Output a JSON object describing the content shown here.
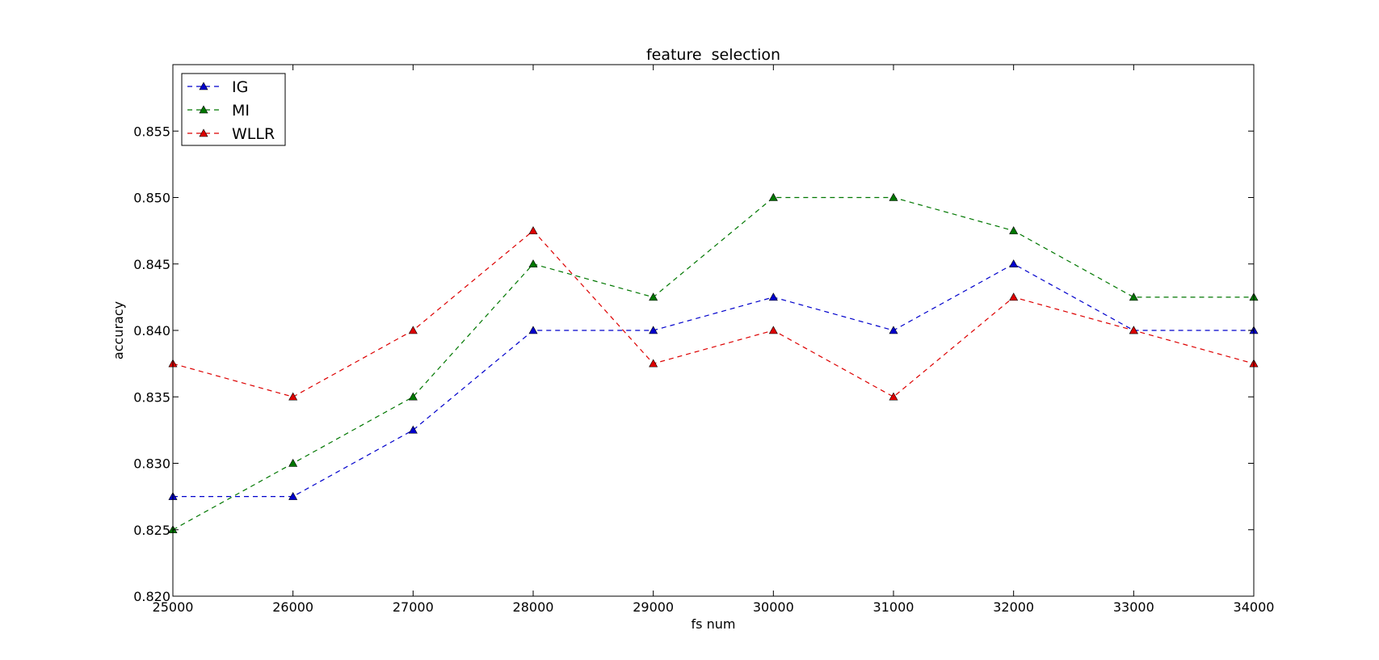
{
  "chart_data": {
    "type": "line",
    "title": "feature  selection",
    "xlabel": "fs num",
    "ylabel": "accuracy",
    "xlim": [
      25000,
      34000
    ],
    "ylim": [
      0.82,
      0.86
    ],
    "x": [
      25000,
      26000,
      27000,
      28000,
      29000,
      30000,
      31000,
      32000,
      33000,
      34000
    ],
    "xticks": [
      "25000",
      "26000",
      "27000",
      "28000",
      "29000",
      "30000",
      "31000",
      "32000",
      "33000",
      "34000"
    ],
    "yticks": [
      {
        "value": 0.82,
        "label": "0.820"
      },
      {
        "value": 0.825,
        "label": "0.825"
      },
      {
        "value": 0.83,
        "label": "0.830"
      },
      {
        "value": 0.835,
        "label": "0.835"
      },
      {
        "value": 0.84,
        "label": "0.840"
      },
      {
        "value": 0.845,
        "label": "0.845"
      },
      {
        "value": 0.85,
        "label": "0.850"
      },
      {
        "value": 0.855,
        "label": "0.855"
      }
    ],
    "grid": false,
    "legend_position": "top-left",
    "line_style": "dashed",
    "marker": "triangle-up",
    "series": [
      {
        "name": "IG",
        "color": "#0000cc",
        "values": [
          0.8275,
          0.8275,
          0.8325,
          0.84,
          0.84,
          0.8425,
          0.84,
          0.845,
          0.84,
          0.84
        ]
      },
      {
        "name": "MI",
        "color": "#007700",
        "values": [
          0.825,
          0.83,
          0.835,
          0.845,
          0.8425,
          0.85,
          0.85,
          0.8475,
          0.8425,
          0.8425
        ]
      },
      {
        "name": "WLLR",
        "color": "#dd0000",
        "values": [
          0.8375,
          0.835,
          0.84,
          0.8475,
          0.8375,
          0.84,
          0.835,
          0.8425,
          0.84,
          0.8375
        ]
      }
    ]
  }
}
